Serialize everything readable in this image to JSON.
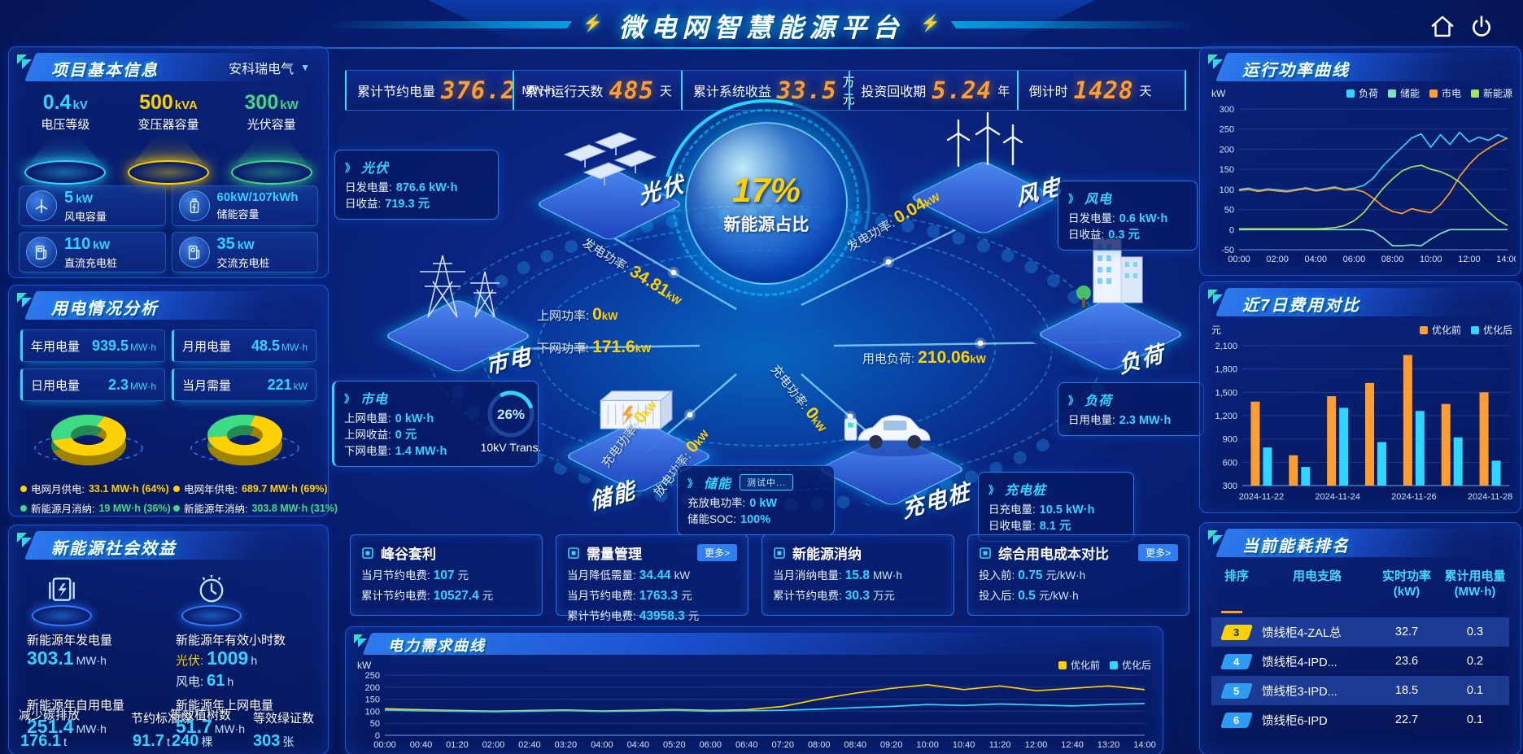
{
  "colors": {
    "cyan": "#2ed5ff",
    "orange": "#ff9d2e",
    "yellow": "#ffd100",
    "green": "#3ddc84",
    "blue": "#2d9cf4"
  },
  "header": {
    "title": "微电网智慧能源平台",
    "icons": [
      "home-icon",
      "power-icon"
    ]
  },
  "kpis": [
    {
      "label": "累计节约电量",
      "value": "376.2",
      "unit": "MW·h"
    },
    {
      "label": "累计运行天数",
      "value": "485",
      "unit": "天"
    },
    {
      "label": "累计系统收益",
      "value": "33.5",
      "unit": "万元"
    },
    {
      "label": "投资回收期",
      "value": "5.24",
      "unit": "年"
    },
    {
      "label": "倒计时",
      "value": "1428",
      "unit": "天"
    }
  ],
  "project": {
    "title": "项目基本信息",
    "company": "安科瑞电气",
    "pods": [
      {
        "value": "0.4",
        "unit": "kV",
        "label": "电压等级",
        "color": "#2ed5ff"
      },
      {
        "value": "500",
        "unit": "kVA",
        "label": "变压器容量",
        "color": "#ffd100"
      },
      {
        "value": "300",
        "unit": "kW",
        "label": "光伏容量",
        "color": "#3ddc84"
      }
    ],
    "cards": [
      {
        "icon": "wind-turbine-icon",
        "value": "5",
        "unit": "kW",
        "label": "风电容量"
      },
      {
        "icon": "battery-icon",
        "value": "60kW/107kWh",
        "unit": "",
        "label": "储能容量"
      },
      {
        "icon": "dc-charger-icon",
        "value": "110",
        "unit": "kW",
        "label": "直流充电桩"
      },
      {
        "icon": "ac-charger-icon",
        "value": "35",
        "unit": "kW",
        "label": "交流充电桩"
      }
    ]
  },
  "usage": {
    "title": "用电情况分析",
    "stats": [
      {
        "label": "年用电量",
        "value": "939.5",
        "unit": "MW·h"
      },
      {
        "label": "月用电量",
        "value": "48.5",
        "unit": "MW·h"
      },
      {
        "label": "日用电量",
        "value": "2.3",
        "unit": "MW·h"
      },
      {
        "label": "当月需量",
        "value": "221",
        "unit": "kW"
      }
    ]
  },
  "social": {
    "title": "新能源社会效益",
    "gen": {
      "label": "新能源年发电量",
      "value": "303.1",
      "unit": "MW·h"
    },
    "hours": {
      "label": "新能源年有效小时数",
      "pv_key": "光伏:",
      "pv_value": "1009",
      "pv_unit": "h",
      "wind_key": "风电:",
      "wind_value": "61",
      "wind_unit": "h"
    },
    "self": {
      "label": "新能源年自用电量",
      "value": "251.4",
      "unit": "MW·h"
    },
    "carbon": {
      "label": "减少碳排放",
      "value": "176.1",
      "unit": "t"
    },
    "coal": {
      "label": "节约标准煤",
      "value": "91.7",
      "unit": "t"
    },
    "export": {
      "label": "新能源年上网电量",
      "value": "51.7",
      "unit": "MW·h"
    },
    "trees": {
      "label": "等效植树数",
      "value": "240",
      "unit": "棵"
    },
    "certs": {
      "label": "等效绿证数",
      "value": "303",
      "unit": "张"
    }
  },
  "diagram": {
    "center": {
      "value": "17%",
      "label": "新能源占比"
    },
    "nodes": {
      "pv": "光伏",
      "wind": "风电",
      "grid": "市电",
      "storage": "储能",
      "charger": "充电桩",
      "load": "负荷"
    },
    "transformer": {
      "value": "26%",
      "label": "10kV Trans."
    },
    "flows": [
      {
        "k": "发电功率:",
        "v": "34.81",
        "u": "kW"
      },
      {
        "k": "发电功率:",
        "v": "0.04",
        "u": "kW"
      },
      {
        "k": "上网功率:",
        "v": "0",
        "u": "kW"
      },
      {
        "k": "下网功率:",
        "v": "171.6",
        "u": "kW"
      },
      {
        "k": "用电负荷:",
        "v": "210.06",
        "u": "kW"
      },
      {
        "k": "充电功率:",
        "v": "0",
        "u": "kW"
      },
      {
        "k": "放电功率:",
        "v": "0",
        "u": "kW"
      },
      {
        "k": "充电功率:",
        "v": "0",
        "u": "kW"
      }
    ],
    "boxes": {
      "pv": {
        "title": "光伏",
        "lines": [
          {
            "k": "日发电量:",
            "v": "876.6 kW·h"
          },
          {
            "k": "日收益:",
            "v": "719.3 元"
          }
        ]
      },
      "wind": {
        "title": "风电",
        "lines": [
          {
            "k": "日发电量:",
            "v": "0.6 kW·h"
          },
          {
            "k": "日收益:",
            "v": "0.3 元"
          }
        ]
      },
      "grid": {
        "title": "市电",
        "lines": [
          {
            "k": "上网电量:",
            "v": "0 kW·h"
          },
          {
            "k": "上网收益:",
            "v": "0 元"
          },
          {
            "k": "下网电量:",
            "v": "1.4 MW·h"
          }
        ]
      },
      "storage": {
        "title": "储能",
        "badge": "测试中...",
        "lines": [
          {
            "k": "充放电功率:",
            "v": "0 kW"
          },
          {
            "k": "储能SOC:",
            "v": "100%"
          }
        ]
      },
      "charger": {
        "title": "充电桩",
        "lines": [
          {
            "k": "日充电量:",
            "v": "10.5 kW·h"
          },
          {
            "k": "日收电量:",
            "v": "8.1 元"
          }
        ]
      },
      "load": {
        "title": "负荷",
        "lines": [
          {
            "k": "日用电量:",
            "v": "2.3 MW·h"
          }
        ]
      }
    }
  },
  "benefits": [
    {
      "title": "峰谷套利",
      "more": false,
      "more_label": "",
      "rows": [
        {
          "k": "当月节约电费:",
          "v": "107",
          "u": "元"
        },
        {
          "k": "累计节约电费:",
          "v": "10527.4",
          "u": "元"
        }
      ]
    },
    {
      "title": "需量管理",
      "more": true,
      "more_label": "更多>",
      "rows": [
        {
          "k": "当月降低需量:",
          "v": "34.44",
          "u": "kW"
        },
        {
          "k": "当月节约电费:",
          "v": "1763.3",
          "u": "元"
        },
        {
          "k": "累计节约电费:",
          "v": "43958.3",
          "u": "元"
        }
      ]
    },
    {
      "title": "新能源消纳",
      "more": false,
      "more_label": "",
      "rows": [
        {
          "k": "当月消纳电量:",
          "v": "15.8",
          "u": "MW·h"
        },
        {
          "k": "累计节约电费:",
          "v": "30.3",
          "u": "万元"
        }
      ]
    },
    {
      "title": "综合用电成本对比",
      "more": true,
      "more_label": "更多>",
      "rows": [
        {
          "k": "投入前:",
          "v": "0.75",
          "u": "元/kW·h"
        },
        {
          "k": "投入后:",
          "v": "0.5",
          "u": "元/kW·h"
        }
      ]
    }
  ],
  "panels": {
    "run_title": "运行功率曲线",
    "cost_title": "近7日费用对比",
    "demand_title": "电力需求曲线",
    "rank_title": "当前能耗排名"
  },
  "rank": {
    "headers": [
      {
        "t": "排序",
        "s": ""
      },
      {
        "t": "用电支路",
        "s": ""
      },
      {
        "t": "实时功率",
        "s": "(kW)"
      },
      {
        "t": "累计用电量",
        "s": "(MW·h)"
      }
    ],
    "rows": [
      {
        "rank": "3",
        "branch": "馈线柜4-ZAL总",
        "power": "32.7",
        "energy": "0.3",
        "badge": "#ffd100",
        "badge_text": "#06306e",
        "hl": true
      },
      {
        "rank": "4",
        "branch": "馈线柜4-IPD...",
        "power": "23.6",
        "energy": "0.2",
        "badge": "#2d9cf4",
        "badge_text": "#ffffff",
        "hl": false
      },
      {
        "rank": "5",
        "branch": "馈线柜3-IPD...",
        "power": "18.5",
        "energy": "0.1",
        "badge": "#2d9cf4",
        "badge_text": "#ffffff",
        "hl": true
      },
      {
        "rank": "6",
        "branch": "馈线柜6-IPD",
        "power": "22.7",
        "energy": "0.1",
        "badge": "#2d9cf4",
        "badge_text": "#ffffff",
        "hl": false
      }
    ]
  },
  "chart_data": [
    {
      "id": "runpower",
      "type": "line",
      "title": "运行功率曲线",
      "ylabel": "kW",
      "ylim": [
        -50,
        300
      ],
      "yticks": [
        -50,
        0,
        50,
        100,
        150,
        200,
        250,
        300
      ],
      "x_show_every": 4,
      "legend_position": "top-right",
      "grid": false,
      "x": [
        "00:00",
        "00:30",
        "01:00",
        "01:30",
        "02:00",
        "02:30",
        "03:00",
        "03:30",
        "04:00",
        "04:30",
        "05:00",
        "05:30",
        "06:00",
        "06:30",
        "07:00",
        "07:30",
        "08:00",
        "08:30",
        "09:00",
        "09:30",
        "10:00",
        "10:30",
        "11:00",
        "11:30",
        "12:00",
        "12:30",
        "13:00",
        "13:30",
        "14:00"
      ],
      "series": [
        {
          "name": "负荷",
          "color": "#2ed5ff",
          "values": [
            100,
            103,
            97,
            101,
            99,
            96,
            100,
            104,
            98,
            102,
            106,
            100,
            103,
            110,
            128,
            158,
            182,
            205,
            228,
            238,
            205,
            236,
            212,
            242,
            218,
            230,
            222,
            236,
            226
          ]
        },
        {
          "name": "储能",
          "color": "#7fe3c3",
          "values": [
            0,
            0,
            0,
            0,
            0,
            0,
            0,
            0,
            0,
            0,
            0,
            0,
            0,
            0,
            -4,
            -20,
            -40,
            -40,
            -38,
            -40,
            -24,
            -10,
            0,
            0,
            0,
            0,
            0,
            0,
            0
          ]
        },
        {
          "name": "市电",
          "color": "#ff9d2e",
          "values": [
            97,
            100,
            95,
            99,
            96,
            94,
            98,
            102,
            96,
            100,
            104,
            98,
            100,
            94,
            78,
            58,
            45,
            40,
            52,
            46,
            42,
            62,
            92,
            132,
            162,
            186,
            202,
            216,
            228
          ]
        },
        {
          "name": "新能源",
          "color": "#a8e063",
          "values": [
            2,
            2,
            2,
            2,
            2,
            2,
            2,
            2,
            2,
            3,
            5,
            10,
            22,
            42,
            72,
            102,
            126,
            146,
            156,
            160,
            150,
            144,
            134,
            118,
            94,
            68,
            44,
            24,
            10
          ]
        }
      ]
    },
    {
      "id": "cost7",
      "type": "bar",
      "title": "近7日费用对比",
      "ylabel": "元",
      "ylim": [
        300,
        2100
      ],
      "yticks": [
        300,
        600,
        900,
        1200,
        1500,
        1800,
        2100
      ],
      "legend_position": "top-right",
      "grid": false,
      "categories": [
        "2024-11-22",
        "2024-11-23",
        "2024-11-24",
        "2024-11-25",
        "2024-11-26",
        "2024-11-27",
        "2024-11-28"
      ],
      "xticks_shown": [
        "2024-11-22",
        "2024-11-24",
        "2024-11-26",
        "2024-11-28"
      ],
      "series": [
        {
          "name": "优化前",
          "color": "#ff9d2e",
          "values": [
            1380,
            690,
            1450,
            1620,
            1980,
            1350,
            1500
          ]
        },
        {
          "name": "优化后",
          "color": "#2ed5ff",
          "values": [
            790,
            540,
            1300,
            860,
            1260,
            920,
            620
          ]
        }
      ]
    },
    {
      "id": "demand",
      "type": "line",
      "title": "电力需求曲线",
      "ylabel": "kW",
      "ylim": [
        0,
        250
      ],
      "yticks": [
        0,
        50,
        100,
        150,
        200,
        250
      ],
      "x_show_every": 1,
      "legend_position": "top-right",
      "grid": false,
      "x": [
        "00:00",
        "00:40",
        "01:20",
        "02:00",
        "02:40",
        "03:20",
        "04:00",
        "04:40",
        "05:20",
        "06:00",
        "06:40",
        "07:20",
        "08:00",
        "08:40",
        "09:20",
        "10:00",
        "10:40",
        "11:20",
        "12:00",
        "12:40",
        "13:20",
        "14:00"
      ],
      "series": [
        {
          "name": "优化前",
          "color": "#ffd100",
          "values": [
            110,
            106,
            103,
            100,
            103,
            105,
            101,
            104,
            107,
            103,
            106,
            120,
            150,
            175,
            195,
            210,
            190,
            205,
            185,
            195,
            205,
            190
          ]
        },
        {
          "name": "优化后",
          "color": "#2ed5ff",
          "values": [
            105,
            102,
            100,
            98,
            100,
            103,
            99,
            101,
            104,
            100,
            102,
            104,
            108,
            115,
            120,
            128,
            124,
            130,
            126,
            122,
            128,
            132
          ]
        }
      ]
    },
    {
      "id": "donut_month",
      "type": "pie",
      "slices": [
        {
          "label": "电网月供电",
          "value": 64,
          "display": "33.1 MW·h (64%)",
          "color": "#ffd100"
        },
        {
          "label": "新能源月消纳",
          "value": 36,
          "display": "19 MW·h (36%)",
          "color": "#3ddc84"
        }
      ]
    },
    {
      "id": "donut_year",
      "type": "pie",
      "slices": [
        {
          "label": "电网年供电",
          "value": 69,
          "display": "689.7 MW·h (69%)",
          "color": "#ffd100"
        },
        {
          "label": "新能源年消纳",
          "value": 31,
          "display": "303.8 MW·h (31%)",
          "color": "#3ddc84"
        }
      ]
    }
  ]
}
